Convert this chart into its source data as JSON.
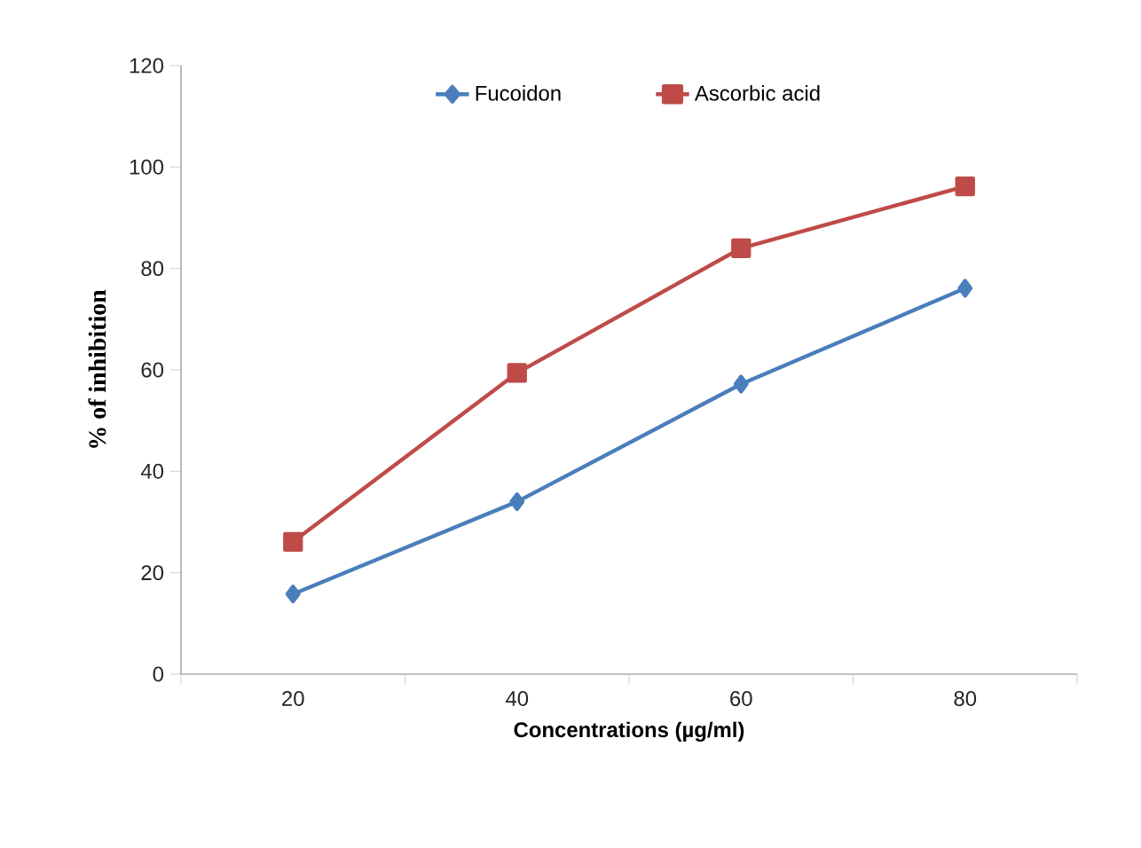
{
  "chart_data": {
    "type": "line",
    "xlabel": "Concentrations (µg/ml)",
    "ylabel": "% of inhibition",
    "categories": [
      "20",
      "40",
      "60",
      "80"
    ],
    "series": [
      {
        "name": "Fucoidon",
        "color": "#4a7ebb",
        "marker": "diamond",
        "values": [
          15.8,
          34.0,
          57.2,
          76.1
        ]
      },
      {
        "name": "Ascorbic acid",
        "color": "#be4b48",
        "marker": "square",
        "values": [
          26.1,
          59.4,
          84.0,
          96.2
        ]
      }
    ],
    "ylim": [
      0,
      120
    ],
    "yticks": [
      0,
      20,
      40,
      60,
      80,
      100,
      120
    ],
    "grid": false,
    "legend": "top"
  }
}
